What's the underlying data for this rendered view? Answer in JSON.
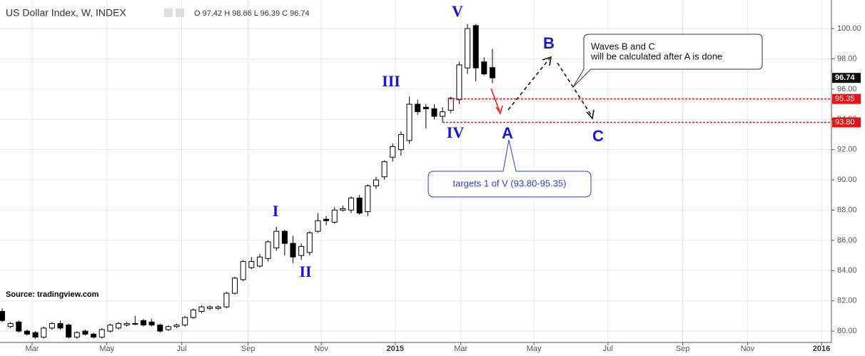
{
  "chart_data": {
    "type": "candlestick",
    "title": "US Dollar Index, W, INDEX",
    "ohlc_header": "O 97.42 H 98.66 L 96.39 C 96.74",
    "source": "Source: tradingview.com",
    "x": [
      0,
      1,
      2,
      3,
      4,
      5,
      6,
      7,
      8,
      9,
      10,
      11,
      12,
      13,
      14,
      15,
      16,
      17,
      18,
      19,
      20,
      21,
      22,
      23,
      24,
      25,
      26,
      27,
      28,
      29,
      30,
      31,
      32,
      33,
      34,
      35,
      36,
      37,
      38,
      39,
      40,
      41,
      42,
      43,
      44,
      45,
      46,
      47,
      48,
      49,
      50,
      51,
      52,
      53,
      54,
      55,
      56,
      57,
      58,
      59
    ],
    "open": [
      81.3,
      80.3,
      80.6,
      80.0,
      79.9,
      79.6,
      80.2,
      80.5,
      80.4,
      79.6,
      80.0,
      79.8,
      79.6,
      80.0,
      80.2,
      80.4,
      80.5,
      80.7,
      80.6,
      80.4,
      80.1,
      80.3,
      80.4,
      80.9,
      81.3,
      81.5,
      81.5,
      81.6,
      82.5,
      83.4,
      84.2,
      84.3,
      84.8,
      85.5,
      86.6,
      85.8,
      85.0,
      85.2,
      86.6,
      87.4,
      87.2,
      88.0,
      88.0,
      88.8,
      87.9,
      89.6,
      90.2,
      91.5,
      92.0,
      92.6,
      95.0,
      94.8,
      94.7,
      94.2,
      94.6,
      95.3,
      97.4,
      100.2,
      97.8,
      97.42
    ],
    "high": [
      81.5,
      80.6,
      80.7,
      80.1,
      80.0,
      80.3,
      80.6,
      80.7,
      80.5,
      80.0,
      80.1,
      79.9,
      80.2,
      80.5,
      80.6,
      80.6,
      81.0,
      80.8,
      80.8,
      80.5,
      80.4,
      80.5,
      81.0,
      81.5,
      81.7,
      81.7,
      81.7,
      82.6,
      83.6,
      84.7,
      84.9,
      85.1,
      86.0,
      86.9,
      86.7,
      86.3,
      85.8,
      86.6,
      87.8,
      87.6,
      88.2,
      88.3,
      88.9,
      89.0,
      89.7,
      90.2,
      91.3,
      92.4,
      93.2,
      95.5,
      95.3,
      95.0,
      95.0,
      94.8,
      95.5,
      97.8,
      100.3,
      100.3,
      98.1,
      98.66
    ],
    "low": [
      80.6,
      80.2,
      79.9,
      79.7,
      79.5,
      79.5,
      80.1,
      80.1,
      79.5,
      79.5,
      79.7,
      79.5,
      79.5,
      79.9,
      80.1,
      80.3,
      80.4,
      80.3,
      80.3,
      79.9,
      80.0,
      80.2,
      80.3,
      80.8,
      81.2,
      81.4,
      81.4,
      81.5,
      82.4,
      83.3,
      84.1,
      84.2,
      84.6,
      85.3,
      85.0,
      84.5,
      84.7,
      85.0,
      86.5,
      87.0,
      87.1,
      87.9,
      87.8,
      87.7,
      87.6,
      89.4,
      90.0,
      91.2,
      91.6,
      92.4,
      94.3,
      93.4,
      94.0,
      93.8,
      94.4,
      95.0,
      97.0,
      96.5,
      96.9,
      96.39
    ],
    "close": [
      80.7,
      80.5,
      80.0,
      79.8,
      79.6,
      80.2,
      80.5,
      80.2,
      79.6,
      79.9,
      79.8,
      79.6,
      80.1,
      80.4,
      80.5,
      80.5,
      80.5,
      80.4,
      80.4,
      80.0,
      80.3,
      80.4,
      80.9,
      81.4,
      81.6,
      81.6,
      81.6,
      82.5,
      83.5,
      84.6,
      84.6,
      84.9,
      85.9,
      86.6,
      85.8,
      84.9,
      85.6,
      86.5,
      87.3,
      87.3,
      88.0,
      88.1,
      88.8,
      87.8,
      89.6,
      90.0,
      91.2,
      92.2,
      93.0,
      95.0,
      94.5,
      94.7,
      94.2,
      94.5,
      95.4,
      97.6,
      100.0,
      97.4,
      97.0,
      96.74
    ],
    "xlim": [
      -0.26,
      99.8
    ],
    "xticks": [
      {
        "value": 3.6,
        "label": "Mar"
      },
      {
        "value": 12.6,
        "label": "May"
      },
      {
        "value": 21.6,
        "label": "Jul"
      },
      {
        "value": 29.6,
        "label": "Sep"
      },
      {
        "value": 38.4,
        "label": "Nov"
      },
      {
        "value": 47.3,
        "label": "2015"
      },
      {
        "value": 55.2,
        "label": "Mar"
      },
      {
        "value": 64.0,
        "label": "May"
      },
      {
        "value": 72.9,
        "label": "Jul"
      },
      {
        "value": 81.9,
        "label": "Sep"
      },
      {
        "value": 89.7,
        "label": "Nov"
      },
      {
        "value": 98.6,
        "label": "2016"
      }
    ],
    "ylim": [
      79.25,
      101.89
    ],
    "yticks": [
      {
        "value": 80,
        "label": "80.00"
      },
      {
        "value": 82,
        "label": "82.00"
      },
      {
        "value": 84,
        "label": "84.00"
      },
      {
        "value": 86,
        "label": "86.00"
      },
      {
        "value": 88,
        "label": "88.00"
      },
      {
        "value": 90,
        "label": "90.00"
      },
      {
        "value": 92,
        "label": "92.00"
      },
      {
        "value": 94,
        "label": "94.00"
      },
      {
        "value": 96,
        "label": "96.00"
      },
      {
        "value": 98,
        "label": "98.00"
      },
      {
        "value": 100,
        "label": "100.00"
      }
    ],
    "grid": true,
    "up_color": "#ffffff",
    "down_color": "#000000",
    "last_price": 96.74,
    "levels": [
      {
        "value": 95.35,
        "label": "95.35"
      },
      {
        "value": 93.8,
        "label": "93.80"
      }
    ],
    "level_color": "#ee1111",
    "wave_labels": [
      "I",
      "II",
      "III",
      "IV",
      "V",
      "A",
      "B",
      "C"
    ],
    "note": [
      "Waves B and C",
      "will be calculated after A is done"
    ],
    "target_note": "targets 1 of V (93.80-95.35)"
  }
}
